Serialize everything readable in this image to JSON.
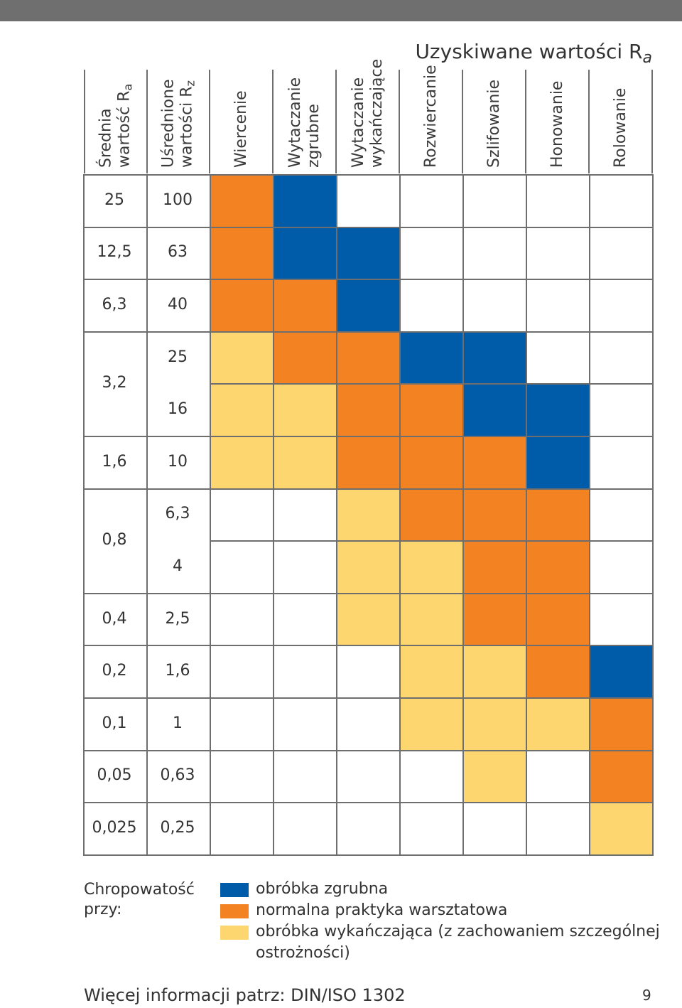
{
  "header_title": "Uzyskiwane wartości R",
  "header_title_sub": "a",
  "columns": [
    {
      "line1": "Średnia",
      "line2": "wartość R",
      "sub": "a"
    },
    {
      "line1": "Uśrednione",
      "line2": "wartości R",
      "sub": "z"
    },
    {
      "line1": "Wiercenie",
      "line2": "",
      "sub": ""
    },
    {
      "line1": "Wytaczanie",
      "line2": "zgrubne",
      "sub": ""
    },
    {
      "line1": "Wytaczanie",
      "line2": "wykańczające",
      "sub": ""
    },
    {
      "line1": "Rozwiercanie",
      "line2": "",
      "sub": ""
    },
    {
      "line1": "Szlifowanie",
      "line2": "",
      "sub": ""
    },
    {
      "line1": "Honowanie",
      "line2": "",
      "sub": ""
    },
    {
      "line1": "Rolowanie",
      "line2": "",
      "sub": ""
    }
  ],
  "ra_groups": [
    {
      "label": "25",
      "rows": 1
    },
    {
      "label": "12,5",
      "rows": 1
    },
    {
      "label": "6,3",
      "rows": 1
    },
    {
      "label": "3,2",
      "rows": 2
    },
    {
      "label": "1,6",
      "rows": 1
    },
    {
      "label": "0,8",
      "rows": 2
    },
    {
      "label": "0,4",
      "rows": 1
    },
    {
      "label": "0,2",
      "rows": 1
    },
    {
      "label": "0,1",
      "rows": 1
    },
    {
      "label": "0,05",
      "rows": 1
    },
    {
      "label": "0,025",
      "rows": 1
    }
  ],
  "rz_values": [
    "100",
    "63",
    "40",
    "25",
    "16",
    "10",
    "6,3",
    "4",
    "2,5",
    "1,6",
    "1",
    "0,63",
    "0,25"
  ],
  "colors": {
    "R": "#005ba9",
    "N": "#f28222",
    "F": "#fdd670",
    "E": "#ffffff"
  },
  "matrix": [
    [
      "N",
      "R",
      "E",
      "E",
      "E",
      "E",
      "E"
    ],
    [
      "N",
      "R",
      "R",
      "E",
      "E",
      "E",
      "E"
    ],
    [
      "N",
      "N",
      "R",
      "E",
      "E",
      "E",
      "E"
    ],
    [
      "F",
      "N",
      "N",
      "R",
      "R",
      "E",
      "E"
    ],
    [
      "F",
      "F",
      "N",
      "N",
      "R",
      "R",
      "E"
    ],
    [
      "F",
      "F",
      "N",
      "N",
      "N",
      "R",
      "E"
    ],
    [
      "E",
      "E",
      "F",
      "N",
      "N",
      "N",
      "E"
    ],
    [
      "E",
      "E",
      "F",
      "F",
      "N",
      "N",
      "E"
    ],
    [
      "E",
      "E",
      "F",
      "F",
      "N",
      "N",
      "E"
    ],
    [
      "E",
      "E",
      "E",
      "F",
      "F",
      "N",
      "R"
    ],
    [
      "E",
      "E",
      "E",
      "F",
      "F",
      "F",
      "N"
    ],
    [
      "E",
      "E",
      "E",
      "E",
      "F",
      "E",
      "N"
    ],
    [
      "E",
      "E",
      "E",
      "E",
      "E",
      "E",
      "F"
    ]
  ],
  "legend_title": "Chropowatość\nprzy:",
  "legend": [
    {
      "key": "R",
      "label": "obróbka zgrubna"
    },
    {
      "key": "N",
      "label": "normalna praktyka warsztatowa"
    },
    {
      "key": "F",
      "label": "obróbka wykańczająca (z zachowaniem szczególnej"
    },
    {
      "key": "",
      "label": "ostrożności)"
    }
  ],
  "footer_text": "Więcej informacji patrz: DIN/ISO 1302",
  "page_number": "9"
}
